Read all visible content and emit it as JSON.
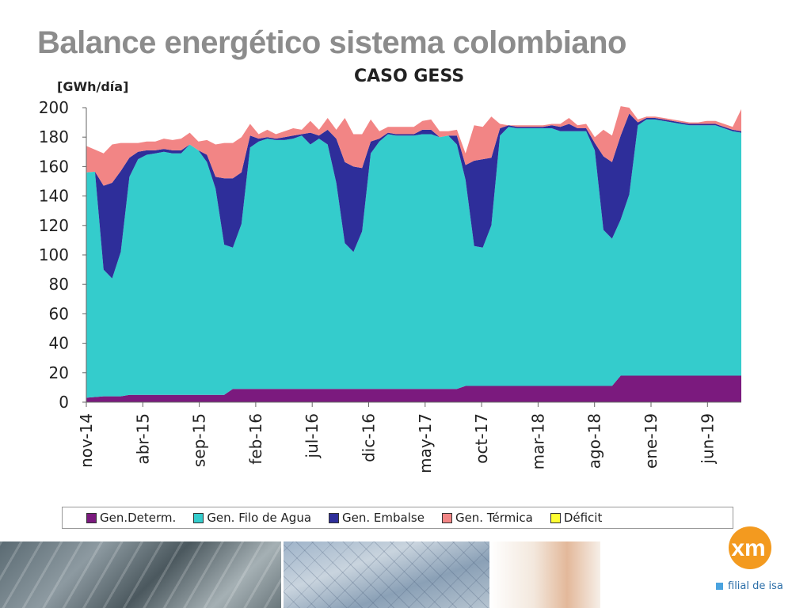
{
  "slide": {
    "title": "Balance energético sistema colombiano",
    "logo_text": "xm",
    "logo_subtitle": "filial de isa"
  },
  "chart_data": {
    "type": "area",
    "title": "CASO GESS",
    "ylabel": "[GWh/día]",
    "xlabel": "",
    "ylim": [
      0,
      200
    ],
    "yticks": [
      0,
      20,
      40,
      60,
      80,
      100,
      120,
      140,
      160,
      180,
      200
    ],
    "xtick_labels": [
      "nov-14",
      "abr-15",
      "sep-15",
      "feb-16",
      "jul-16",
      "dic-16",
      "may-17",
      "oct-17",
      "mar-18",
      "ago-18",
      "ene-19",
      "jun-19"
    ],
    "grid": false,
    "legend_position": "bottom",
    "stacked": true,
    "series": [
      {
        "name": "Gen.Determ.",
        "color": "#7b1a7e",
        "values": [
          3,
          3.5,
          4,
          4,
          4,
          5,
          5,
          5,
          5,
          5,
          5,
          5,
          5,
          5,
          5,
          5,
          5,
          9,
          9,
          9,
          9,
          9,
          9,
          9,
          9,
          9,
          9,
          9,
          9,
          9,
          9,
          9,
          9,
          9,
          9,
          9,
          9,
          9,
          9,
          9,
          9,
          9,
          9,
          9,
          11,
          11,
          11,
          11,
          11,
          11,
          11,
          11,
          11,
          11,
          11,
          11,
          11,
          11,
          11,
          11,
          11,
          11,
          18,
          18,
          18,
          18,
          18,
          18,
          18,
          18,
          18,
          18,
          18,
          18,
          18,
          18,
          18
        ]
      },
      {
        "name": "Gen. Filo de Agua",
        "color": "#34cccc",
        "values": [
          153,
          153,
          86,
          80,
          98,
          148,
          160,
          163,
          164,
          165,
          164,
          164,
          170,
          166,
          158,
          140,
          102,
          96,
          112,
          164,
          168,
          170,
          169,
          169,
          170,
          172,
          166,
          170,
          166,
          140,
          99,
          93,
          107,
          160,
          168,
          173,
          172,
          172,
          172,
          173,
          173,
          171,
          172,
          166,
          140,
          95,
          94,
          109,
          170,
          176,
          175,
          175,
          175,
          175,
          175,
          173,
          173,
          173,
          173,
          160,
          106,
          100,
          106,
          123,
          170,
          174,
          174,
          173,
          172,
          171,
          170,
          170,
          170,
          170,
          168,
          166,
          165
        ]
      },
      {
        "name": "Gen. Embalse",
        "color": "#2e2e9a",
        "values": [
          0,
          0,
          57,
          65,
          55,
          13,
          5,
          3,
          2,
          2,
          2,
          2,
          0,
          0,
          5,
          8,
          45,
          47,
          35,
          8,
          2,
          1,
          1,
          2,
          2,
          1,
          8,
          2,
          10,
          30,
          55,
          58,
          43,
          8,
          2,
          1,
          1,
          1,
          1,
          3,
          3,
          0,
          0,
          6,
          10,
          58,
          60,
          46,
          5,
          1,
          1,
          1,
          1,
          1,
          2,
          3,
          5,
          2,
          2,
          5,
          50,
          52,
          57,
          55,
          2,
          1,
          1,
          1,
          1,
          1,
          1,
          1,
          1,
          1,
          1,
          1,
          1
        ]
      },
      {
        "name": "Gen. Térmica",
        "color": "#f28585",
        "values": [
          18,
          15,
          22,
          26,
          19,
          10,
          6,
          6,
          6,
          7,
          7,
          8,
          8,
          6,
          10,
          22,
          24,
          24,
          24,
          8,
          3,
          5,
          3,
          4,
          5,
          3,
          8,
          4,
          8,
          6,
          30,
          22,
          23,
          15,
          5,
          4,
          5,
          5,
          5,
          6,
          7,
          4,
          3,
          4,
          8,
          24,
          22,
          28,
          3,
          0,
          1,
          1,
          1,
          1,
          1,
          2,
          4,
          2,
          3,
          4,
          18,
          18,
          20,
          4,
          2,
          1,
          1,
          1,
          1,
          1,
          1,
          1,
          2,
          2,
          2,
          2,
          15
        ]
      },
      {
        "name": "Déficit",
        "color": "#ffff33",
        "values": [
          0,
          0,
          0,
          0,
          0,
          0,
          0,
          0,
          0,
          0,
          0,
          0,
          0,
          0,
          0,
          0,
          0,
          0,
          0,
          0,
          0,
          0,
          0,
          0,
          0,
          0,
          0,
          0,
          0,
          0,
          0,
          0,
          0,
          0,
          0,
          0,
          0,
          0,
          0,
          0,
          0,
          0,
          0,
          0,
          0,
          0,
          0,
          0,
          0,
          0,
          0,
          0,
          0,
          0,
          0,
          0,
          0,
          0,
          0,
          0,
          0,
          0,
          0,
          0,
          0,
          0,
          0,
          0,
          0,
          0,
          0,
          0,
          0,
          0,
          0,
          0,
          0
        ]
      }
    ]
  }
}
